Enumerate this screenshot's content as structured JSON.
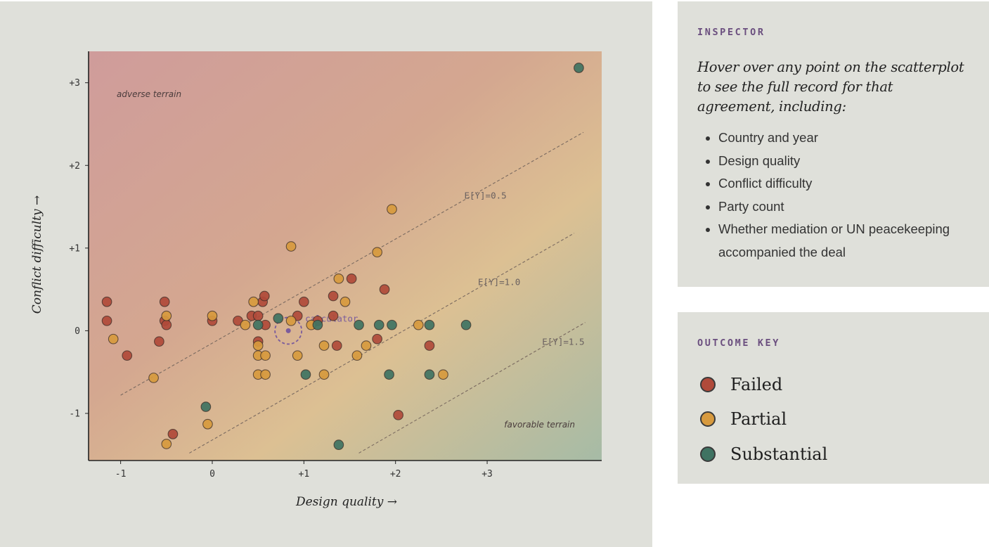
{
  "inspector": {
    "heading": "INSPECTOR",
    "intro": "Hover over any point on the scatterplot to see the full record for that agreement, including:",
    "items": [
      "Country and year",
      "Design quality",
      "Conflict difficulty",
      "Party count",
      "Whether mediation or UN peacekeeping accompanied the deal"
    ]
  },
  "outcome_key": {
    "heading": "OUTCOME KEY",
    "items": [
      {
        "label": "Failed",
        "color": "#b04a3a"
      },
      {
        "label": "Partial",
        "color": "#d79a3e"
      },
      {
        "label": "Substantial",
        "color": "#3f7362"
      }
    ]
  },
  "chart_data": {
    "type": "scatter",
    "xlabel": "Design quality →",
    "ylabel": "Conflict difficulty →",
    "xlim": [
      -1.35,
      4.25
    ],
    "ylim": [
      -1.57,
      3.38
    ],
    "xticks": [
      {
        "v": -1,
        "label": "-1"
      },
      {
        "v": 0,
        "label": "0"
      },
      {
        "v": 1,
        "label": "+1"
      },
      {
        "v": 2,
        "label": "+2"
      },
      {
        "v": 3,
        "label": "+3"
      }
    ],
    "yticks": [
      {
        "v": -1,
        "label": "-1"
      },
      {
        "v": 0,
        "label": "0"
      },
      {
        "v": 1,
        "label": "+1"
      },
      {
        "v": 2,
        "label": "+2"
      },
      {
        "v": 3,
        "label": "+3"
      }
    ],
    "region_labels": {
      "top_left": "adverse terrain",
      "bottom_right": "favorable terrain"
    },
    "isolines": [
      {
        "label": "E[Y]=0.5",
        "from": [
          -1.0,
          -0.78
        ],
        "to": [
          4.05,
          2.4
        ],
        "label_at": [
          2.75,
          1.6
        ]
      },
      {
        "label": "E[Y]=1.0",
        "from": [
          -0.25,
          -1.48
        ],
        "to": [
          3.95,
          1.18
        ],
        "label_at": [
          2.9,
          0.55
        ]
      },
      {
        "label": "E[Y]=1.5",
        "from": [
          1.6,
          -1.48
        ],
        "to": [
          4.07,
          0.1
        ],
        "label_at": [
          3.6,
          -0.17
        ]
      }
    ],
    "calculator": {
      "label": "calculator",
      "x": 0.83,
      "y": 0.0
    },
    "series": [
      {
        "name": "Failed",
        "color": "#b04a3a",
        "points": [
          [
            -1.15,
            0.35
          ],
          [
            -1.15,
            0.12
          ],
          [
            -0.93,
            -0.3
          ],
          [
            -0.58,
            -0.13
          ],
          [
            -0.52,
            0.35
          ],
          [
            -0.52,
            0.12
          ],
          [
            -0.5,
            0.07
          ],
          [
            -0.43,
            -1.25
          ],
          [
            0.0,
            0.12
          ],
          [
            0.28,
            0.12
          ],
          [
            0.43,
            0.18
          ],
          [
            0.5,
            0.18
          ],
          [
            0.5,
            -0.13
          ],
          [
            0.55,
            0.35
          ],
          [
            0.57,
            0.42
          ],
          [
            0.58,
            0.07
          ],
          [
            0.93,
            0.18
          ],
          [
            1.0,
            0.35
          ],
          [
            1.15,
            0.12
          ],
          [
            1.32,
            0.18
          ],
          [
            1.32,
            0.42
          ],
          [
            1.36,
            -0.18
          ],
          [
            1.52,
            0.63
          ],
          [
            1.8,
            -0.1
          ],
          [
            1.88,
            0.5
          ],
          [
            2.03,
            -1.02
          ],
          [
            2.37,
            -0.18
          ]
        ]
      },
      {
        "name": "Partial",
        "color": "#d79a3e",
        "points": [
          [
            -1.08,
            -0.1
          ],
          [
            -0.64,
            -0.57
          ],
          [
            -0.5,
            0.18
          ],
          [
            -0.5,
            -1.37
          ],
          [
            -0.05,
            -1.13
          ],
          [
            0.0,
            0.18
          ],
          [
            0.36,
            0.07
          ],
          [
            0.45,
            0.35
          ],
          [
            0.5,
            -0.18
          ],
          [
            0.5,
            -0.3
          ],
          [
            0.5,
            -0.53
          ],
          [
            0.58,
            -0.3
          ],
          [
            0.58,
            -0.53
          ],
          [
            0.86,
            1.02
          ],
          [
            0.86,
            0.12
          ],
          [
            0.93,
            -0.3
          ],
          [
            1.08,
            0.07
          ],
          [
            1.22,
            -0.18
          ],
          [
            1.22,
            -0.53
          ],
          [
            1.38,
            0.63
          ],
          [
            1.45,
            0.35
          ],
          [
            1.58,
            -0.3
          ],
          [
            1.68,
            -0.18
          ],
          [
            1.8,
            0.95
          ],
          [
            1.96,
            1.47
          ],
          [
            2.25,
            0.07
          ],
          [
            2.52,
            -0.53
          ]
        ]
      },
      {
        "name": "Substantial",
        "color": "#3f7362",
        "points": [
          [
            -0.07,
            -0.92
          ],
          [
            0.5,
            0.07
          ],
          [
            0.72,
            0.15
          ],
          [
            1.02,
            -0.53
          ],
          [
            1.15,
            0.07
          ],
          [
            1.38,
            -1.38
          ],
          [
            1.6,
            0.07
          ],
          [
            1.82,
            0.07
          ],
          [
            1.93,
            -0.53
          ],
          [
            1.96,
            0.07
          ],
          [
            2.37,
            0.07
          ],
          [
            2.37,
            -0.53
          ],
          [
            2.77,
            0.07
          ],
          [
            4.0,
            3.18
          ]
        ]
      }
    ]
  }
}
